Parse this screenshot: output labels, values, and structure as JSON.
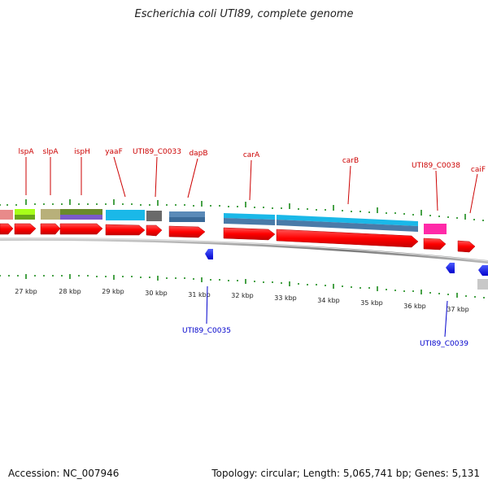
{
  "title": "Escherichia coli UTI89, complete genome",
  "footer": {
    "accession": "Accession: NC_007946",
    "summary": "Topology: circular; Length: 5,065,741 bp; Genes: 5,131"
  },
  "ruler": {
    "labels": [
      "27 kbp",
      "28 kbp",
      "29 kbp",
      "30 kbp",
      "31 kbp",
      "32 kbp",
      "33 kbp",
      "34 kbp",
      "35 kbp",
      "36 kbp",
      "37 kbp"
    ]
  },
  "genes_forward": [
    {
      "name": "lspA"
    },
    {
      "name": "slpA"
    },
    {
      "name": "ispH"
    },
    {
      "name": "yaaF"
    },
    {
      "name": "UTI89_C0033"
    },
    {
      "name": "dapB"
    },
    {
      "name": "carA"
    },
    {
      "name": "carB"
    },
    {
      "name": "UTI89_C0038"
    },
    {
      "name": "caiF"
    }
  ],
  "genes_reverse": [
    {
      "name": "UTI89_C0035"
    },
    {
      "name": "UTI89_C0039"
    }
  ],
  "colors": {
    "gene_forward": "#ff0000",
    "gene_reverse": "#0000ff",
    "label_forward": "#cc0000",
    "label_reverse": "#0000cc",
    "ticks": "#1a8a1a",
    "backbone": "#8a8a8a"
  }
}
